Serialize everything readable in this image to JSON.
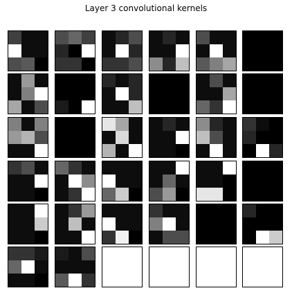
{
  "chart_data": {
    "type": "heatmap",
    "title": "Layer 3 convolutional kernels",
    "layout": {
      "rows": 6,
      "cols": 6
    },
    "kernel_size": [
      3,
      3
    ],
    "value_range": [
      0,
      1
    ],
    "colormap": "gray",
    "empty_panel_color": "#ffffff",
    "frame_color": "#000000",
    "kernels": [
      [
        [
          0.25,
          0.05,
          0.05
        ],
        [
          1.0,
          0.05,
          0.05
        ],
        [
          0.3,
          0.35,
          0.0
        ]
      ],
      [
        [
          0.3,
          0.4,
          0.25
        ],
        [
          0.15,
          0.0,
          1.0
        ],
        [
          0.2,
          0.2,
          0.0
        ]
      ],
      [
        [
          0.05,
          0.15,
          0.3
        ],
        [
          0.05,
          1.0,
          0.15
        ],
        [
          0.2,
          0.2,
          0.3
        ]
      ],
      [
        [
          0.05,
          0.15,
          0.05
        ],
        [
          0.05,
          0.05,
          1.0
        ],
        [
          0.55,
          0.15,
          0.75
        ]
      ],
      [
        [
          0.3,
          0.05,
          0.05
        ],
        [
          0.05,
          1.0,
          0.05
        ],
        [
          0.35,
          0.5,
          0.65
        ]
      ],
      [
        [
          0.0,
          0.0,
          0.0
        ],
        [
          0.0,
          0.0,
          0.0
        ],
        [
          0.0,
          0.0,
          0.0
        ]
      ],
      [
        [
          0.05,
          0.6,
          0.05
        ],
        [
          0.05,
          0.5,
          1.0
        ],
        [
          0.65,
          0.05,
          0.3
        ]
      ],
      [
        [
          0.0,
          0.0,
          0.0
        ],
        [
          0.0,
          0.0,
          0.0
        ],
        [
          0.1,
          0.0,
          1.0
        ]
      ],
      [
        [
          0.15,
          0.05,
          0.15
        ],
        [
          0.05,
          1.0,
          0.15
        ],
        [
          0.05,
          0.05,
          0.75
        ]
      ],
      [
        [
          0.0,
          0.0,
          0.0
        ],
        [
          0.0,
          0.0,
          0.0
        ],
        [
          0.0,
          0.0,
          0.0
        ]
      ],
      [
        [
          0.05,
          0.3,
          0.05
        ],
        [
          0.05,
          0.05,
          0.65
        ],
        [
          0.4,
          0.2,
          1.0
        ]
      ],
      [
        [
          0.0,
          0.0,
          0.0
        ],
        [
          0.0,
          0.0,
          0.0
        ],
        [
          0.0,
          0.0,
          0.0
        ]
      ],
      [
        [
          0.5,
          0.05,
          0.5
        ],
        [
          0.6,
          0.7,
          0.3
        ],
        [
          0.05,
          0.05,
          1.0
        ]
      ],
      [
        [
          0.0,
          0.0,
          0.0
        ],
        [
          0.0,
          0.0,
          0.0
        ],
        [
          0.0,
          0.0,
          0.0
        ]
      ],
      [
        [
          0.9,
          0.65,
          0.05
        ],
        [
          0.05,
          0.85,
          0.05
        ],
        [
          0.7,
          0.05,
          1.0
        ]
      ],
      [
        [
          0.05,
          0.15,
          0.05
        ],
        [
          0.05,
          0.05,
          1.0
        ],
        [
          0.05,
          0.05,
          0.0
        ]
      ],
      [
        [
          0.55,
          0.15,
          0.05
        ],
        [
          0.75,
          0.3,
          0.05
        ],
        [
          0.05,
          1.0,
          0.05
        ]
      ],
      [
        [
          0.2,
          0.05,
          0.0
        ],
        [
          0.15,
          0.0,
          0.0
        ],
        [
          0.0,
          1.0,
          0.15
        ]
      ],
      [
        [
          0.2,
          0.3,
          0.05
        ],
        [
          0.05,
          0.05,
          1.0
        ],
        [
          0.05,
          0.05,
          0.0
        ]
      ],
      [
        [
          0.4,
          0.2,
          0.05
        ],
        [
          0.05,
          1.0,
          0.55
        ],
        [
          0.05,
          0.2,
          1.0
        ]
      ],
      [
        [
          0.05,
          0.05,
          0.05
        ],
        [
          1.0,
          0.05,
          0.05
        ],
        [
          0.4,
          0.8,
          0.0
        ]
      ],
      [
        [
          0.05,
          0.05,
          1.0
        ],
        [
          0.05,
          0.4,
          0.05
        ],
        [
          0.3,
          0.6,
          0.0
        ]
      ],
      [
        [
          0.05,
          0.05,
          1.0
        ],
        [
          0.05,
          0.05,
          0.0
        ],
        [
          0.9,
          0.9,
          0.0
        ]
      ],
      [
        [
          0.0,
          0.0,
          0.0
        ],
        [
          0.0,
          0.0,
          0.0
        ],
        [
          0.0,
          0.0,
          0.0
        ]
      ],
      [
        [
          0.05,
          0.05,
          1.0
        ],
        [
          0.05,
          0.05,
          0.8
        ],
        [
          0.05,
          0.05,
          0.0
        ]
      ],
      [
        [
          0.05,
          0.2,
          0.6
        ],
        [
          0.05,
          0.75,
          0.05
        ],
        [
          0.05,
          0.05,
          1.0
        ]
      ],
      [
        [
          0.05,
          0.05,
          0.05
        ],
        [
          1.0,
          0.05,
          0.05
        ],
        [
          0.2,
          0.95,
          0.0
        ]
      ],
      [
        [
          0.2,
          0.05,
          0.05
        ],
        [
          0.5,
          1.0,
          0.05
        ],
        [
          0.05,
          0.3,
          0.3
        ]
      ],
      [
        [
          0.0,
          0.0,
          0.0
        ],
        [
          0.0,
          0.0,
          0.0
        ],
        [
          0.0,
          0.0,
          0.0
        ]
      ],
      [
        [
          0.15,
          0.0,
          0.0
        ],
        [
          0.0,
          0.0,
          0.0
        ],
        [
          0.0,
          1.0,
          0.8
        ]
      ],
      [
        [
          0.2,
          0.2,
          0.1
        ],
        [
          0.4,
          1.0,
          0.05
        ],
        [
          0.05,
          0.05,
          0.0
        ]
      ],
      [
        [
          0.1,
          0.05,
          0.3
        ],
        [
          0.05,
          0.05,
          0.05
        ],
        [
          0.35,
          1.0,
          0.2
        ]
      ]
    ]
  }
}
